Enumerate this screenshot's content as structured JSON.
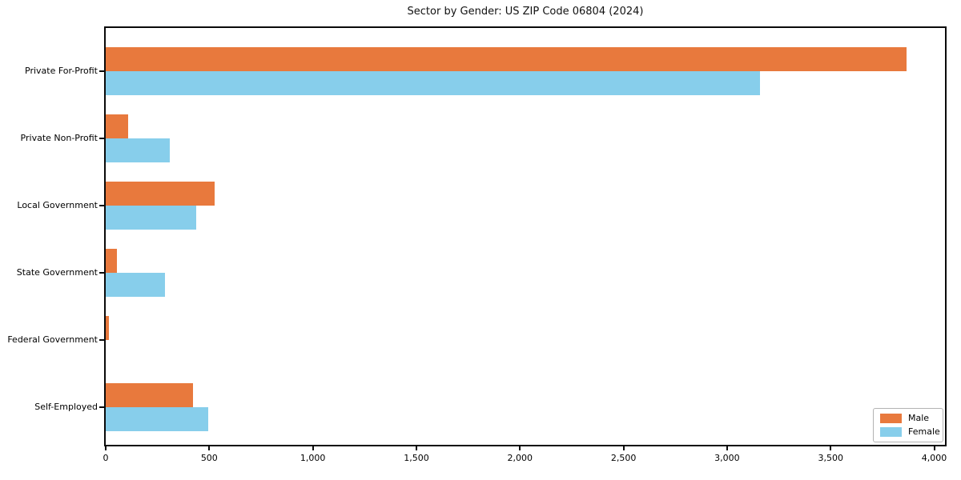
{
  "title": "Sector by Gender: US ZIP Code 06804 (2024)",
  "chart_data": {
    "type": "bar",
    "orientation": "horizontal",
    "title": "Sector by Gender: US ZIP Code 06804 (2024)",
    "categories": [
      "Private For-Profit",
      "Private Non-Profit",
      "Local Government",
      "State Government",
      "Federal Government",
      "Self-Employed"
    ],
    "series": [
      {
        "name": "Male",
        "color": "#E8793D",
        "values": [
          3868,
          110,
          525,
          56,
          14,
          421
        ]
      },
      {
        "name": "Female",
        "color": "#87CEEB",
        "values": [
          3157,
          310,
          437,
          287,
          0,
          495
        ]
      }
    ],
    "xlabel": "",
    "ylabel": "",
    "xlim": [
      0,
      4052
    ],
    "xticks": [
      0,
      500,
      1000,
      1500,
      2000,
      2500,
      3000,
      3500,
      4000
    ],
    "xtick_labels": [
      "0",
      "500",
      "1,000",
      "1,500",
      "2,000",
      "2,500",
      "3,000",
      "3,500",
      "4,000"
    ],
    "legend": {
      "position": "lower-right",
      "entries": [
        "Male",
        "Female"
      ]
    },
    "grid": false,
    "axis_color": "#0a0a0a",
    "background": "#FFFFFF"
  }
}
